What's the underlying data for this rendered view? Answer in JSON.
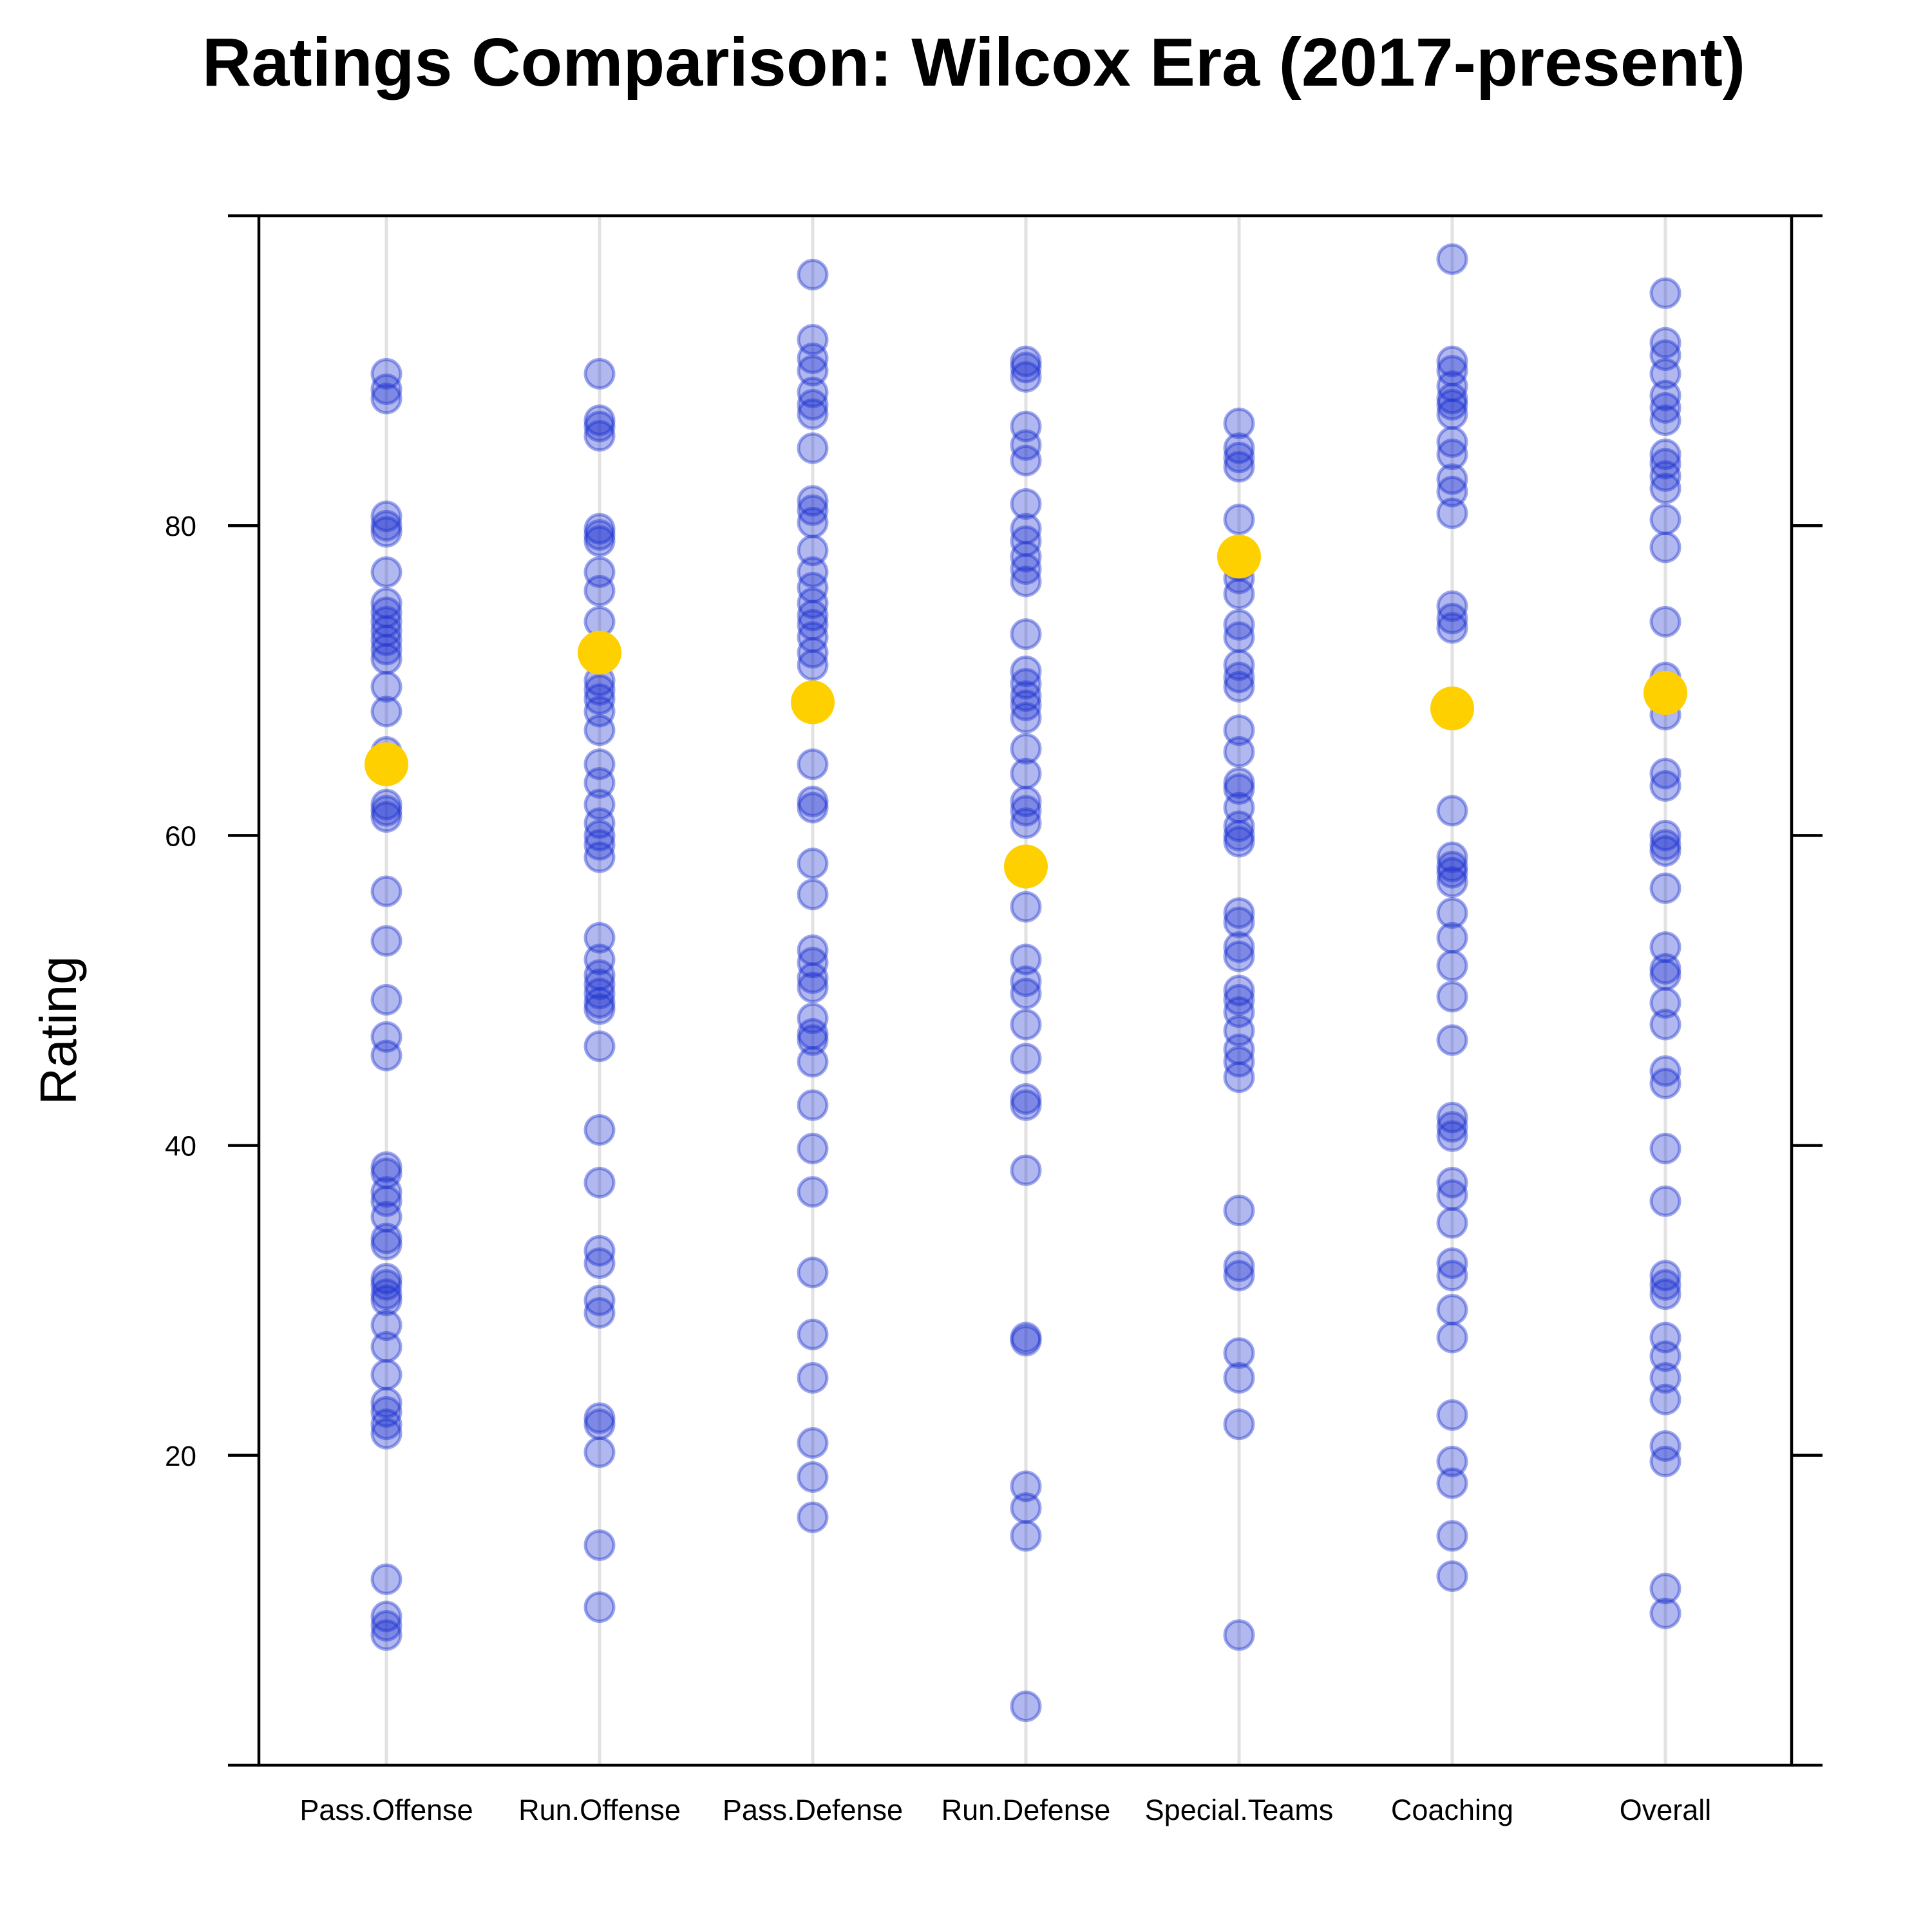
{
  "chart_data": {
    "type": "scatter",
    "title": "Ratings Comparison: Wilcox Era (2017-present)",
    "ylabel": "Rating",
    "xlabel": "",
    "ylim": [
      0,
      100
    ],
    "yticks": [
      20,
      40,
      60,
      80
    ],
    "grid": false,
    "legend": "none",
    "categories": [
      "Pass.Offense",
      "Run.Offense",
      "Pass.Defense",
      "Run.Defense",
      "Special.Teams",
      "Coaching",
      "Overall"
    ],
    "colors": {
      "points": "#1a2fd0",
      "mean": "#ffd000",
      "guide": "#e2e2e2"
    },
    "series": [
      {
        "values": [
          89.8,
          88.8,
          88.2,
          80.6,
          80.0,
          79.6,
          77.0,
          75.0,
          74.4,
          73.8,
          73.2,
          72.6,
          72.0,
          71.4,
          69.6,
          68.0,
          65.4,
          62.0,
          61.6,
          61.2,
          56.4,
          53.2,
          49.4,
          47.0,
          45.8,
          38.6,
          38.2,
          37.0,
          36.4,
          35.4,
          34.0,
          33.6,
          31.4,
          31.0,
          30.4,
          30.0,
          28.4,
          27.0,
          25.2,
          23.4,
          22.8,
          22.0,
          21.4,
          12.0,
          9.6,
          9.0,
          8.4
        ],
        "mean": 64.6
      },
      {
        "values": [
          89.8,
          86.8,
          86.4,
          85.8,
          79.8,
          79.4,
          79.0,
          77.0,
          75.8,
          73.8,
          70.0,
          69.4,
          68.8,
          68.0,
          66.8,
          64.6,
          63.4,
          62.0,
          60.8,
          60.0,
          59.4,
          58.6,
          53.4,
          52.0,
          51.0,
          50.4,
          49.8,
          49.2,
          48.8,
          46.4,
          41.0,
          37.6,
          33.2,
          32.4,
          30.0,
          29.2,
          22.4,
          22.0,
          20.2,
          14.2,
          10.2
        ],
        "mean": 71.8
      },
      {
        "values": [
          96.2,
          92.0,
          90.8,
          90.0,
          88.6,
          87.8,
          87.2,
          85.0,
          81.6,
          81.0,
          80.2,
          78.4,
          77.0,
          76.0,
          75.0,
          74.2,
          73.6,
          72.8,
          71.8,
          71.0,
          64.6,
          62.2,
          61.8,
          58.2,
          56.2,
          52.6,
          51.8,
          50.8,
          50.2,
          48.2,
          47.2,
          46.8,
          45.4,
          42.6,
          39.8,
          37.0,
          31.8,
          27.8,
          25.0,
          20.8,
          18.6,
          16.0
        ],
        "mean": 68.6
      },
      {
        "values": [
          90.6,
          90.2,
          89.6,
          86.4,
          85.2,
          84.2,
          81.4,
          79.8,
          79.0,
          78.0,
          77.2,
          76.4,
          73.0,
          70.6,
          69.8,
          69.0,
          68.4,
          67.6,
          65.6,
          64.0,
          62.2,
          61.6,
          60.8,
          55.4,
          52.0,
          50.6,
          49.8,
          47.8,
          45.6,
          43.0,
          42.6,
          38.4,
          27.6,
          27.4,
          18.0,
          16.6,
          14.8,
          3.8
        ],
        "mean": 58.0
      },
      {
        "values": [
          86.6,
          85.0,
          84.4,
          83.8,
          80.4,
          77.4,
          76.6,
          75.6,
          73.6,
          72.8,
          71.0,
          70.2,
          69.6,
          66.8,
          65.4,
          63.4,
          63.0,
          61.8,
          60.6,
          60.0,
          59.6,
          55.0,
          54.4,
          52.8,
          52.2,
          50.0,
          49.4,
          48.6,
          47.4,
          46.2,
          45.4,
          44.4,
          35.8,
          32.2,
          31.6,
          26.6,
          25.0,
          22.0,
          8.4
        ],
        "mean": 78.0
      },
      {
        "values": [
          97.2,
          90.6,
          90.0,
          89.0,
          88.2,
          87.8,
          87.2,
          85.4,
          84.6,
          83.0,
          82.2,
          80.8,
          74.8,
          74.0,
          73.4,
          61.6,
          58.6,
          58.0,
          57.6,
          57.0,
          55.0,
          53.4,
          51.6,
          49.6,
          46.8,
          41.8,
          41.2,
          40.6,
          37.6,
          36.8,
          35.0,
          32.4,
          31.6,
          29.4,
          27.6,
          22.6,
          19.6,
          18.2,
          14.8,
          12.2
        ],
        "mean": 68.2
      },
      {
        "values": [
          95.0,
          91.8,
          91.0,
          89.8,
          88.4,
          87.6,
          86.8,
          84.6,
          84.0,
          83.2,
          82.4,
          80.4,
          78.6,
          73.8,
          70.2,
          67.8,
          64.0,
          63.2,
          60.0,
          59.4,
          59.0,
          56.6,
          52.8,
          51.4,
          51.0,
          49.2,
          47.8,
          44.8,
          44.0,
          39.8,
          36.4,
          31.6,
          31.0,
          30.4,
          27.6,
          26.4,
          25.0,
          23.6,
          20.6,
          19.6,
          11.4,
          9.8
        ],
        "mean": 69.2
      }
    ]
  }
}
